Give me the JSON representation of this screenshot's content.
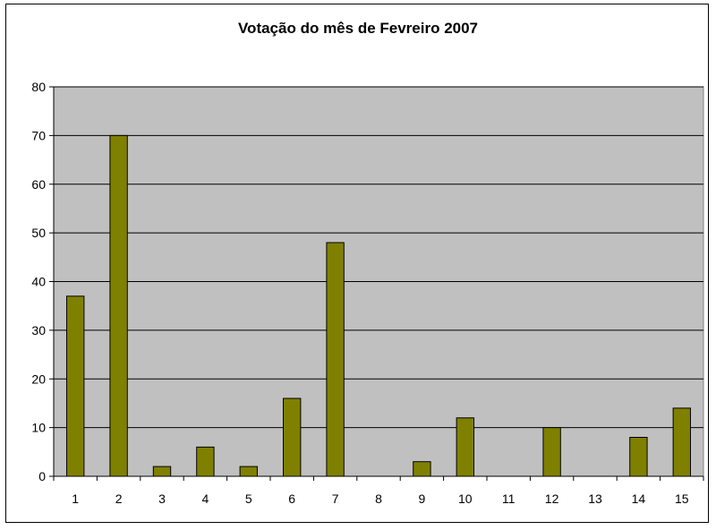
{
  "chart_data": {
    "type": "bar",
    "title": "Votação do mês de Fevreiro 2007",
    "xlabel": "",
    "ylabel": "",
    "categories": [
      "1",
      "2",
      "3",
      "4",
      "5",
      "6",
      "7",
      "8",
      "9",
      "10",
      "11",
      "12",
      "13",
      "14",
      "15"
    ],
    "values": [
      37,
      70,
      2,
      6,
      2,
      16,
      48,
      0,
      3,
      12,
      0,
      10,
      0,
      8,
      14
    ],
    "ylim": [
      0,
      80
    ],
    "yticks": [
      "0",
      "10",
      "20",
      "30",
      "40",
      "50",
      "60",
      "70",
      "80"
    ],
    "grid": true,
    "legend": "none",
    "colors": {
      "bar_fill": "#808000",
      "bar_stroke": "#000000",
      "plot_background": "#c0c0c0",
      "gridline": "#000000"
    }
  }
}
